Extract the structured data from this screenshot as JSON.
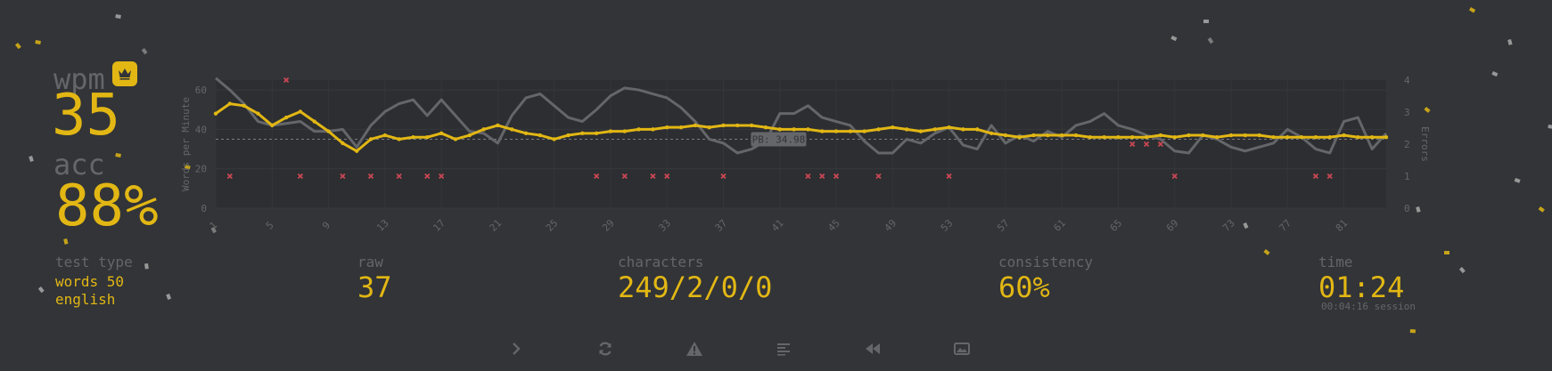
{
  "stats": {
    "wpm_label": "wpm",
    "wpm_value": "35",
    "acc_label": "acc",
    "acc_value": "88%",
    "test_type_label": "test type",
    "test_type_mode": "words 50",
    "test_type_language": "english",
    "raw_label": "raw",
    "raw_value": "37",
    "characters_label": "characters",
    "characters_value": "249/2/0/0",
    "consistency_label": "consistency",
    "consistency_value": "60%",
    "time_label": "time",
    "time_value": "01:24",
    "session_value": "00:04:16 session"
  },
  "icons": {
    "personal_best": "crown-icon",
    "next_test": "chevron-right-icon",
    "restart": "refresh-icon",
    "report": "warning-icon",
    "word_history": "text-align-left-icon",
    "replay": "backward-icon",
    "screenshot": "image-icon"
  },
  "colors": {
    "background": "#323437",
    "accent": "#e2b714",
    "sub": "#646669",
    "error": "#ca4754",
    "raw_line": "#646669",
    "chart_bg": "#2c2e31"
  },
  "chart_data": {
    "type": "line",
    "ylabel": "Words per Minute",
    "y2label": "Errors",
    "ylim": [
      0,
      65
    ],
    "y2lim": [
      0,
      4
    ],
    "y_ticks": [
      0,
      20,
      40,
      60
    ],
    "y2_ticks": [
      0,
      1,
      2,
      3,
      4
    ],
    "x_range": [
      1,
      84
    ],
    "x_ticks": [
      1,
      5,
      9,
      13,
      17,
      21,
      25,
      29,
      33,
      37,
      41,
      45,
      49,
      53,
      57,
      61,
      65,
      69,
      73,
      77,
      81
    ],
    "pb_value": 34.98,
    "pb_label": "PB: 34.98",
    "series": [
      {
        "name": "wpm",
        "values": [
          48,
          53,
          52,
          48,
          42,
          46,
          49,
          44,
          39,
          33,
          29,
          35,
          37,
          35,
          36,
          36,
          38,
          35,
          37,
          40,
          42,
          40,
          38,
          37,
          35,
          37,
          38,
          38,
          39,
          39,
          40,
          40,
          41,
          41,
          42,
          41,
          42,
          42,
          42,
          41,
          40,
          40,
          40,
          39,
          39,
          39,
          39,
          40,
          41,
          40,
          39,
          40,
          41,
          40,
          40,
          38,
          37,
          36,
          37,
          37,
          37,
          37,
          36,
          36,
          36,
          36,
          36,
          37,
          36,
          37,
          37,
          36,
          37,
          37,
          37,
          36,
          36,
          36,
          36,
          36,
          37,
          36,
          36,
          36
        ]
      },
      {
        "name": "raw",
        "values": [
          66,
          60,
          53,
          44,
          42,
          43,
          44,
          39,
          39,
          40,
          31,
          42,
          49,
          53,
          55,
          47,
          55,
          47,
          39,
          38,
          33,
          47,
          56,
          58,
          52,
          46,
          44,
          50,
          57,
          61,
          60,
          58,
          56,
          51,
          44,
          35,
          33,
          28,
          30,
          34,
          48,
          48,
          52,
          46,
          44,
          42,
          34,
          28,
          28,
          35,
          33,
          38,
          41,
          32,
          30,
          42,
          33,
          37,
          34,
          39,
          36,
          42,
          44,
          48,
          42,
          40,
          37,
          35,
          29,
          28,
          37,
          35,
          31,
          29,
          31,
          33,
          40,
          36,
          30,
          28,
          44,
          46,
          30,
          38
        ]
      },
      {
        "name": "errors",
        "points": [
          [
            2,
            1
          ],
          [
            6,
            4
          ],
          [
            7,
            1
          ],
          [
            10,
            1
          ],
          [
            12,
            1
          ],
          [
            14,
            1
          ],
          [
            16,
            1
          ],
          [
            17,
            1
          ],
          [
            28,
            1
          ],
          [
            30,
            1
          ],
          [
            32,
            1
          ],
          [
            33,
            1
          ],
          [
            37,
            1
          ],
          [
            43,
            1
          ],
          [
            44,
            1
          ],
          [
            45,
            1
          ],
          [
            48,
            1
          ],
          [
            53,
            1
          ],
          [
            66,
            2
          ],
          [
            67,
            2
          ],
          [
            68,
            2
          ],
          [
            69,
            1
          ],
          [
            79,
            1
          ],
          [
            80,
            1
          ]
        ]
      }
    ]
  }
}
